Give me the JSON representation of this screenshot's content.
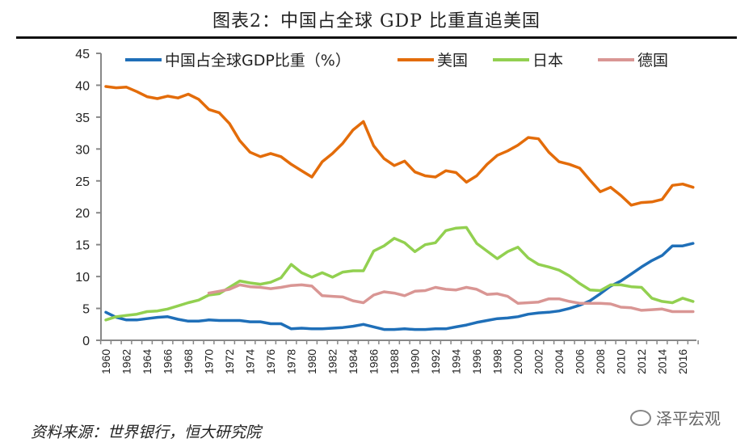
{
  "title": "图表2：中国占全球 GDP 比重直追美国",
  "source": "资料来源：世界银行，恒大研究院",
  "watermark": "泽平宏观",
  "chart_data": {
    "type": "line",
    "title": "",
    "xlabel": "",
    "ylabel": "",
    "ylim": [
      0,
      45
    ],
    "yticks": [
      0,
      5,
      10,
      15,
      20,
      25,
      30,
      35,
      40,
      45
    ],
    "xticks": [
      "1960",
      "1962",
      "1964",
      "1966",
      "1968",
      "1970",
      "1972",
      "1974",
      "1976",
      "1978",
      "1980",
      "1982",
      "1984",
      "1986",
      "1988",
      "1990",
      "1992",
      "1994",
      "1996",
      "1998",
      "2000",
      "2002",
      "2004",
      "2006",
      "2008",
      "2010",
      "2012",
      "2014",
      "2016"
    ],
    "grid": false,
    "legend": "top",
    "x": [
      1960,
      1961,
      1962,
      1963,
      1964,
      1965,
      1966,
      1967,
      1968,
      1969,
      1970,
      1971,
      1972,
      1973,
      1974,
      1975,
      1976,
      1977,
      1978,
      1979,
      1980,
      1981,
      1982,
      1983,
      1984,
      1985,
      1986,
      1987,
      1988,
      1989,
      1990,
      1991,
      1992,
      1993,
      1994,
      1995,
      1996,
      1997,
      1998,
      1999,
      2000,
      2001,
      2002,
      2003,
      2004,
      2005,
      2006,
      2007,
      2008,
      2009,
      2010,
      2011,
      2012,
      2013,
      2014,
      2015,
      2016,
      2017
    ],
    "series": [
      {
        "name": "中国占全球GDP比重（%）",
        "color": "#1f6fb8",
        "values": [
          4.4,
          3.6,
          3.2,
          3.2,
          3.4,
          3.6,
          3.7,
          3.3,
          3.0,
          3.0,
          3.2,
          3.1,
          3.1,
          3.1,
          2.9,
          2.9,
          2.6,
          2.6,
          1.8,
          1.9,
          1.8,
          1.8,
          1.9,
          2.0,
          2.2,
          2.5,
          2.1,
          1.7,
          1.7,
          1.8,
          1.7,
          1.7,
          1.8,
          1.8,
          2.1,
          2.4,
          2.8,
          3.1,
          3.4,
          3.5,
          3.7,
          4.1,
          4.3,
          4.4,
          4.6,
          5.0,
          5.5,
          6.2,
          7.3,
          8.5,
          9.3,
          10.4,
          11.5,
          12.5,
          13.3,
          14.8,
          14.8,
          15.2
        ]
      },
      {
        "name": "美国",
        "color": "#e36c0a",
        "values": [
          39.8,
          39.6,
          39.7,
          39.0,
          38.2,
          37.9,
          38.3,
          38.0,
          38.6,
          37.8,
          36.2,
          35.7,
          34.0,
          31.3,
          29.5,
          28.8,
          29.3,
          28.8,
          27.6,
          26.6,
          25.6,
          28.0,
          29.3,
          30.9,
          33.0,
          34.3,
          30.5,
          28.5,
          27.4,
          28.1,
          26.4,
          25.8,
          25.6,
          26.6,
          26.3,
          24.8,
          25.8,
          27.6,
          29.0,
          29.7,
          30.6,
          31.8,
          31.6,
          29.5,
          28.0,
          27.6,
          27.0,
          25.1,
          23.3,
          24.0,
          22.7,
          21.2,
          21.6,
          21.7,
          22.1,
          24.3,
          24.5,
          24.0
        ]
      },
      {
        "name": "日本",
        "color": "#92d050",
        "values": [
          3.2,
          3.7,
          3.9,
          4.1,
          4.5,
          4.6,
          4.9,
          5.4,
          5.9,
          6.3,
          7.1,
          7.3,
          8.3,
          9.3,
          9.0,
          8.8,
          9.1,
          9.8,
          11.9,
          10.6,
          9.9,
          10.6,
          9.9,
          10.7,
          10.9,
          10.9,
          14.0,
          14.8,
          16.0,
          15.3,
          13.9,
          15.0,
          15.3,
          17.2,
          17.6,
          17.7,
          15.2,
          14.0,
          12.8,
          13.9,
          14.6,
          12.9,
          11.9,
          11.5,
          11.0,
          10.1,
          8.9,
          7.9,
          7.8,
          8.7,
          8.7,
          8.4,
          8.3,
          6.6,
          6.1,
          5.9,
          6.6,
          6.1
        ]
      },
      {
        "name": "德国",
        "color": "#d99694",
        "values": [
          null,
          null,
          null,
          null,
          null,
          null,
          null,
          null,
          null,
          null,
          7.4,
          7.7,
          8.0,
          8.7,
          8.4,
          8.3,
          8.1,
          8.3,
          8.6,
          8.7,
          8.5,
          7.0,
          6.9,
          6.8,
          6.2,
          5.9,
          7.1,
          7.6,
          7.4,
          7.0,
          7.7,
          7.8,
          8.3,
          8.0,
          7.9,
          8.3,
          8.0,
          7.2,
          7.3,
          6.9,
          5.8,
          5.9,
          6.0,
          6.5,
          6.5,
          6.1,
          5.8,
          5.8,
          5.8,
          5.7,
          5.2,
          5.1,
          4.7,
          4.8,
          4.9,
          4.5,
          4.5,
          4.5
        ]
      }
    ]
  }
}
